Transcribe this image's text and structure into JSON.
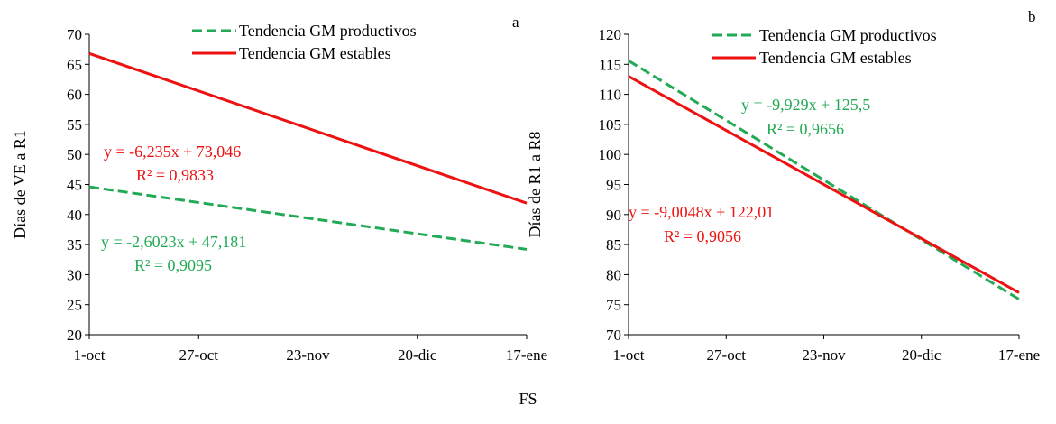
{
  "x_axis_title": "FS",
  "chart_data": [
    {
      "type": "line",
      "panel_label": "a",
      "ylabel": "Días de VE a R1",
      "ylim": [
        20,
        70
      ],
      "yticks": [
        20,
        25,
        30,
        35,
        40,
        45,
        50,
        55,
        60,
        65,
        70
      ],
      "categories": [
        "1-oct",
        "27-oct",
        "23-nov",
        "20-dic",
        "17-ene"
      ],
      "legend_position": "top-center",
      "series": [
        {
          "name": "Tendencia GM productivos",
          "color": "#22aa55",
          "dash": true,
          "x": [
            "1-oct",
            "17-ene"
          ],
          "values": [
            44.6,
            34.2
          ],
          "equation": "y = -2,6023x + 47,181",
          "r2": "R² = 0,9095"
        },
        {
          "name": "Tendencia GM estables",
          "color": "#ee1111",
          "dash": false,
          "x": [
            "1-oct",
            "17-ene"
          ],
          "values": [
            66.8,
            41.9
          ],
          "equation": "y =  -6,235x + 73,046",
          "r2": "R² = 0,9833"
        }
      ]
    },
    {
      "type": "line",
      "panel_label": "b",
      "ylabel": "Días de R1 a R8",
      "ylim": [
        70,
        120
      ],
      "yticks": [
        70,
        75,
        80,
        85,
        90,
        95,
        100,
        105,
        110,
        115,
        120
      ],
      "categories": [
        "1-oct",
        "27-oct",
        "23-nov",
        "20-dic",
        "17-ene"
      ],
      "legend_position": "top-center",
      "series": [
        {
          "name": "Tendencia GM productivos",
          "color": "#22aa55",
          "dash": true,
          "x": [
            "1-oct",
            "17-ene"
          ],
          "values": [
            115.6,
            75.9
          ],
          "equation": "y = -9,929x + 125,5",
          "r2": "R² = 0,9656"
        },
        {
          "name": "Tendencia GM estables",
          "color": "#ee1111",
          "dash": false,
          "x": [
            "1-oct",
            "17-ene"
          ],
          "values": [
            113.0,
            77.0
          ],
          "equation": "y =  -9,0048x + 122,01",
          "r2": "R² = 0,9056"
        }
      ]
    }
  ]
}
